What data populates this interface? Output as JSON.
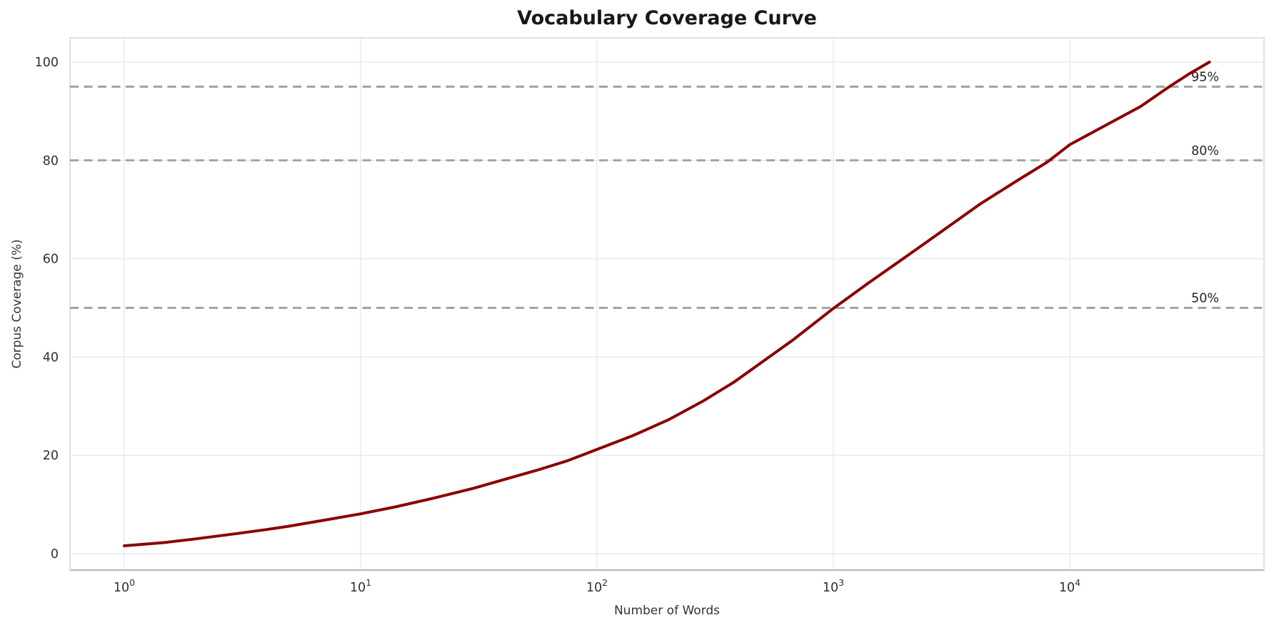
{
  "chart_data": {
    "type": "line",
    "title": "Vocabulary Coverage Curve",
    "xlabel": "Number of Words",
    "ylabel": "Corpus Coverage (%)",
    "x_scale": "log10",
    "grid": true,
    "legend": "none",
    "x_ticks": [
      {
        "value": 1,
        "base": "10",
        "exp": "0"
      },
      {
        "value": 10,
        "base": "10",
        "exp": "1"
      },
      {
        "value": 100,
        "base": "10",
        "exp": "2"
      },
      {
        "value": 1000,
        "base": "10",
        "exp": "3"
      },
      {
        "value": 10000,
        "base": "10",
        "exp": "4"
      }
    ],
    "y_ticks": [
      0,
      20,
      40,
      60,
      80,
      100
    ],
    "xlim_log10": [
      -0.23,
      4.82
    ],
    "ylim": [
      -3.4,
      104.8
    ],
    "series": [
      {
        "name": "vocabulary-coverage",
        "color": "#8b0000",
        "line_width": 4,
        "points": [
          [
            1,
            1.6
          ],
          [
            1.5,
            2.3
          ],
          [
            2,
            3.0
          ],
          [
            3,
            4.1
          ],
          [
            4,
            4.9
          ],
          [
            5,
            5.6
          ],
          [
            7,
            6.8
          ],
          [
            10,
            8.1
          ],
          [
            14,
            9.5
          ],
          [
            20,
            11.2
          ],
          [
            30,
            13.3
          ],
          [
            40,
            15.0
          ],
          [
            55,
            16.9
          ],
          [
            75,
            18.9
          ],
          [
            100,
            21.2
          ],
          [
            140,
            23.9
          ],
          [
            200,
            27.2
          ],
          [
            280,
            31.0
          ],
          [
            380,
            34.9
          ],
          [
            500,
            39.0
          ],
          [
            680,
            43.6
          ],
          [
            1000,
            49.9
          ],
          [
            1400,
            55.0
          ],
          [
            2000,
            60.2
          ],
          [
            2900,
            65.7
          ],
          [
            4200,
            71.2
          ],
          [
            6000,
            75.9
          ],
          [
            8000,
            79.6
          ],
          [
            10000,
            83.2
          ],
          [
            14000,
            87.0
          ],
          [
            20000,
            91.0
          ],
          [
            26000,
            94.8
          ],
          [
            32000,
            97.6
          ],
          [
            39000,
            100.0
          ]
        ]
      }
    ],
    "reference_lines": [
      {
        "value": 50,
        "label": "50%"
      },
      {
        "value": 80,
        "label": "80%"
      },
      {
        "value": 95,
        "label": "95%"
      }
    ],
    "reference_style": {
      "color": "#a3a3a3",
      "dash": [
        12,
        7.5
      ],
      "width": 3
    },
    "colors": {
      "grid": "#e7e7e7",
      "spine": "#d9d9d9",
      "axis_bottom": "#bdbdbd",
      "tick_text": "#303030",
      "title_text": "#181818"
    }
  }
}
